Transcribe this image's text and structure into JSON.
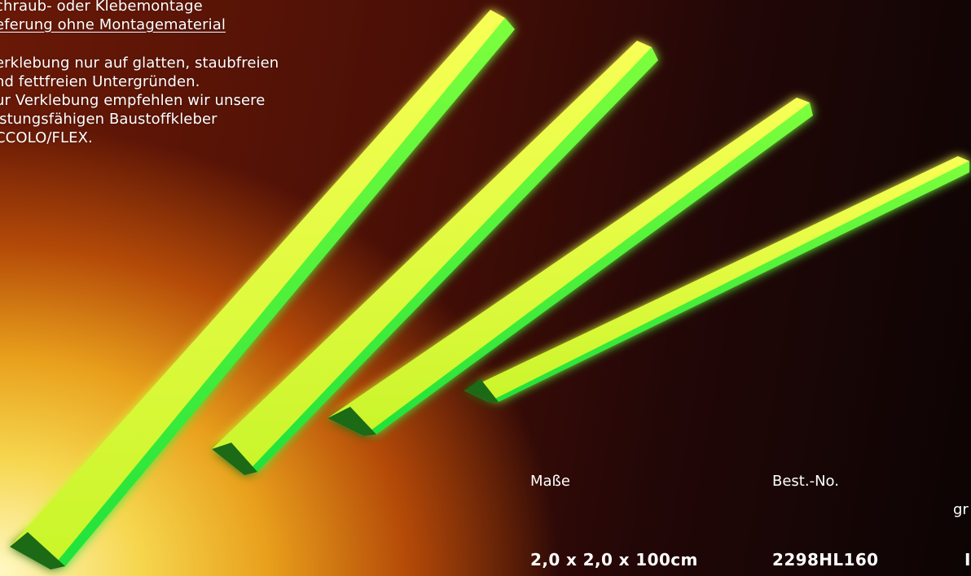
{
  "info_text": {
    "line1": "chraub- oder Klebemontage",
    "line2": "eferung ohne Montagematerial",
    "line3": "erklebung nur auf glatten, staubfreien",
    "line4": "nd fettfreien Untergründen.",
    "line5": "ur Verklebung empfehlen wir unsere",
    "line6": "istungsfähigen Baustoffkleber",
    "line7": "CCOLO/FLEX."
  },
  "spec_table": {
    "headers": [
      "Maße",
      "Best.-No.",
      "gr"
    ],
    "values": [
      "2,0 x 2,0 x 100cm",
      "2298HL160",
      "I"
    ]
  },
  "product_image": {
    "description_icon": "glow-angle-profile-rods",
    "rod_count": 4,
    "colors": {
      "rod_glow": "#3dff2e",
      "rod_edge": "#eaff3a",
      "background_warm": "#f6d64e",
      "background_dark": "#230707"
    }
  }
}
